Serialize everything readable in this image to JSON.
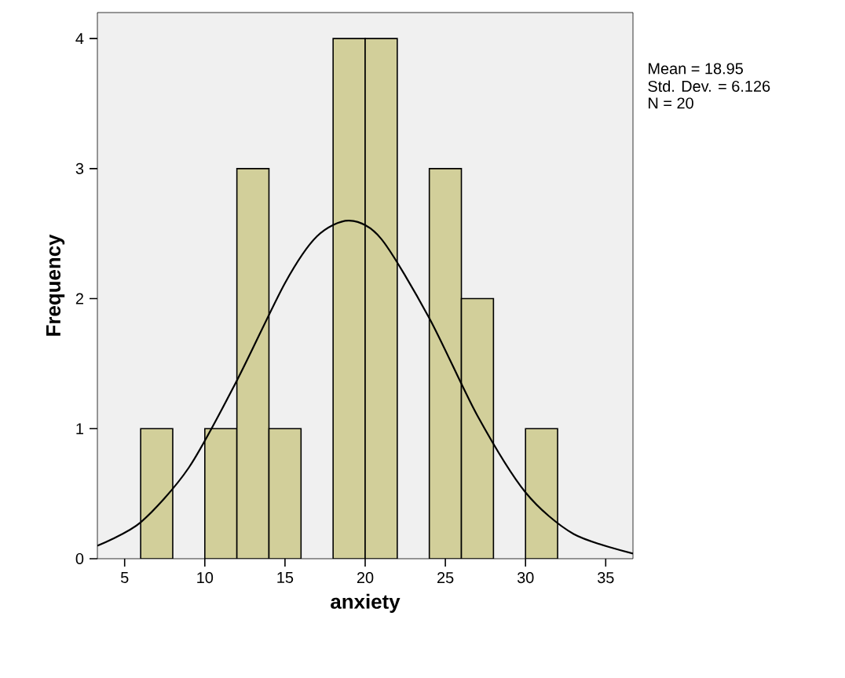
{
  "chart_data": {
    "type": "histogram",
    "xlabel": "anxiety",
    "ylabel": "Frequency",
    "bins": [
      6,
      8,
      10,
      12,
      14,
      16,
      18,
      20,
      22,
      24,
      26,
      28,
      30,
      32
    ],
    "values": [
      1,
      0,
      1,
      3,
      1,
      0,
      4,
      4,
      0,
      3,
      2,
      0,
      1
    ],
    "color": "#d2cf9a",
    "series": [
      {
        "type": "line",
        "color": "#000000",
        "x": [
          3.3,
          6,
          9,
          12,
          15,
          17,
          19,
          21,
          24,
          27,
          30,
          33,
          36.7
        ],
        "values": [
          0.1,
          0.28,
          0.7,
          1.37,
          2.12,
          2.48,
          2.6,
          2.46,
          1.85,
          1.1,
          0.51,
          0.19,
          0.04
        ]
      }
    ],
    "xlim": [
      3.3,
      36.7
    ],
    "ylim": [
      0,
      4.2
    ],
    "xticks": [
      5,
      10,
      15,
      20,
      25,
      30,
      35
    ],
    "yticks": [
      0,
      1,
      2,
      3,
      4
    ],
    "annotations": [
      "Mean = 18.95",
      "Std. Dev. = 6.126",
      "N = 20"
    ]
  }
}
